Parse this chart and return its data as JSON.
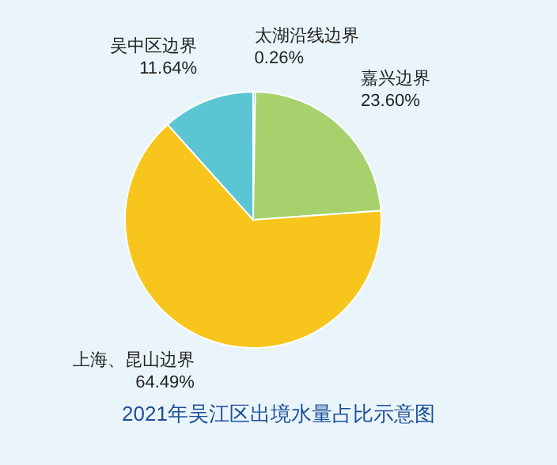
{
  "chart_data": {
    "type": "pie",
    "title": "2021年吴江区出境水量占比示意图",
    "categories": [
      "太湖沿线边界",
      "嘉兴边界",
      "上海、昆山边界",
      "吴中区边界"
    ],
    "values": [
      0.26,
      23.6,
      64.49,
      11.64
    ],
    "colors": [
      "#2e86c8",
      "#a6d16c",
      "#f8c51c",
      "#5cc5d3"
    ],
    "value_labels": [
      "0.26%",
      "23.60%",
      "64.49%",
      "11.64%"
    ]
  }
}
